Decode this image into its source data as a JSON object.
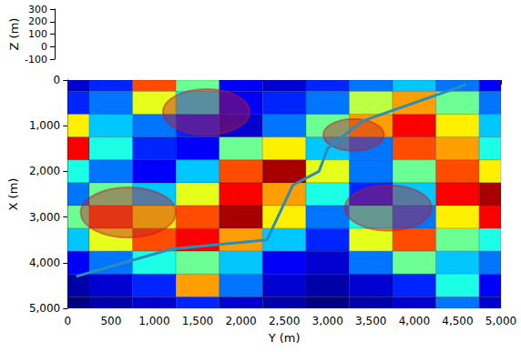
{
  "chart_data": {
    "type": "surface",
    "x_label": "Y (m)",
    "y_label": "X (m)",
    "z_label": "Z (m)",
    "xlim": [
      0,
      5000
    ],
    "xticks": [
      0,
      500,
      1000,
      1500,
      2000,
      2500,
      3000,
      3500,
      4000,
      4500,
      5000
    ],
    "ylim": [
      0,
      5000
    ],
    "yticks": [
      0,
      1000,
      2000,
      3000,
      4000,
      5000
    ],
    "zlim": [
      -100,
      300
    ],
    "zticks": [
      -100,
      0,
      100,
      200,
      300
    ],
    "grid": false,
    "surface": {
      "y_centers": [
        0,
        500,
        1000,
        1500,
        2000,
        2500,
        3000,
        3500,
        4000,
        4500,
        5000
      ],
      "x_centers": [
        0,
        500,
        1000,
        1500,
        2000,
        2500,
        3000,
        3500,
        4000,
        4500,
        5000
      ],
      "color_range": [
        0,
        250
      ],
      "heights": [
        [
          20,
          40,
          200,
          120,
          30,
          20,
          40,
          60,
          80,
          60,
          30
        ],
        [
          40,
          60,
          150,
          90,
          30,
          40,
          60,
          140,
          180,
          120,
          60
        ],
        [
          160,
          80,
          60,
          40,
          20,
          60,
          120,
          180,
          220,
          160,
          80
        ],
        [
          220,
          100,
          40,
          30,
          120,
          160,
          80,
          60,
          200,
          180,
          100
        ],
        [
          100,
          60,
          30,
          80,
          200,
          240,
          150,
          60,
          120,
          200,
          160
        ],
        [
          60,
          120,
          80,
          150,
          220,
          180,
          100,
          40,
          80,
          220,
          240
        ],
        [
          120,
          200,
          160,
          200,
          240,
          160,
          60,
          100,
          60,
          160,
          220
        ],
        [
          80,
          150,
          200,
          220,
          180,
          80,
          40,
          150,
          200,
          120,
          100
        ],
        [
          30,
          60,
          100,
          120,
          80,
          30,
          20,
          60,
          120,
          80,
          60
        ],
        [
          10,
          20,
          40,
          180,
          60,
          20,
          10,
          20,
          40,
          100,
          30
        ],
        [
          0,
          10,
          20,
          40,
          20,
          10,
          0,
          10,
          20,
          60,
          20
        ]
      ]
    },
    "threats": {
      "color": "#c0182b",
      "center_y": [
        1600,
        3300,
        3700,
        700
      ],
      "center_x": [
        700,
        1200,
        2800,
        2900
      ],
      "radius": [
        500,
        350,
        500,
        550
      ]
    },
    "path": {
      "color": "#2b8cbe",
      "y": [
        100,
        1200,
        2300,
        2600,
        2900,
        3000,
        3400,
        4600
      ],
      "x": [
        4300,
        3700,
        3500,
        2300,
        2000,
        1500,
        900,
        100
      ]
    }
  }
}
